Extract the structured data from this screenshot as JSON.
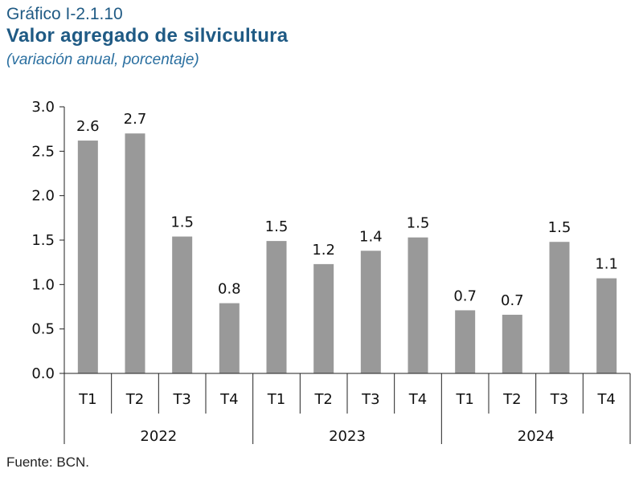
{
  "header": {
    "chart_number": "Gráfico I-2.1.10",
    "title": "Valor agregado de silvicultura",
    "subtitle": "(variación anual, porcentaje)"
  },
  "footer": {
    "source": "Fuente: BCN."
  },
  "colors": {
    "bar": "#999999",
    "title": "#1f5a84",
    "axis": "#222222"
  },
  "chart_data": {
    "type": "bar",
    "categories": [
      "T1",
      "T2",
      "T3",
      "T4",
      "T1",
      "T2",
      "T3",
      "T4",
      "T1",
      "T2",
      "T3",
      "T4"
    ],
    "groups": [
      {
        "label": "2022",
        "start": 0,
        "count": 4
      },
      {
        "label": "2023",
        "start": 4,
        "count": 4
      },
      {
        "label": "2024",
        "start": 8,
        "count": 4
      }
    ],
    "values": [
      2.62,
      2.7,
      1.54,
      0.79,
      1.49,
      1.23,
      1.38,
      1.53,
      0.71,
      0.66,
      1.48,
      1.07
    ],
    "data_labels": [
      "2.6",
      "2.7",
      "1.5",
      "0.8",
      "1.5",
      "1.2",
      "1.4",
      "1.5",
      "0.7",
      "0.7",
      "1.5",
      "1.1"
    ],
    "yticks": [
      "0.0",
      "0.5",
      "1.0",
      "1.5",
      "2.0",
      "2.5",
      "3.0"
    ],
    "ylim": [
      0,
      3
    ],
    "grid": false,
    "legend": "none"
  }
}
